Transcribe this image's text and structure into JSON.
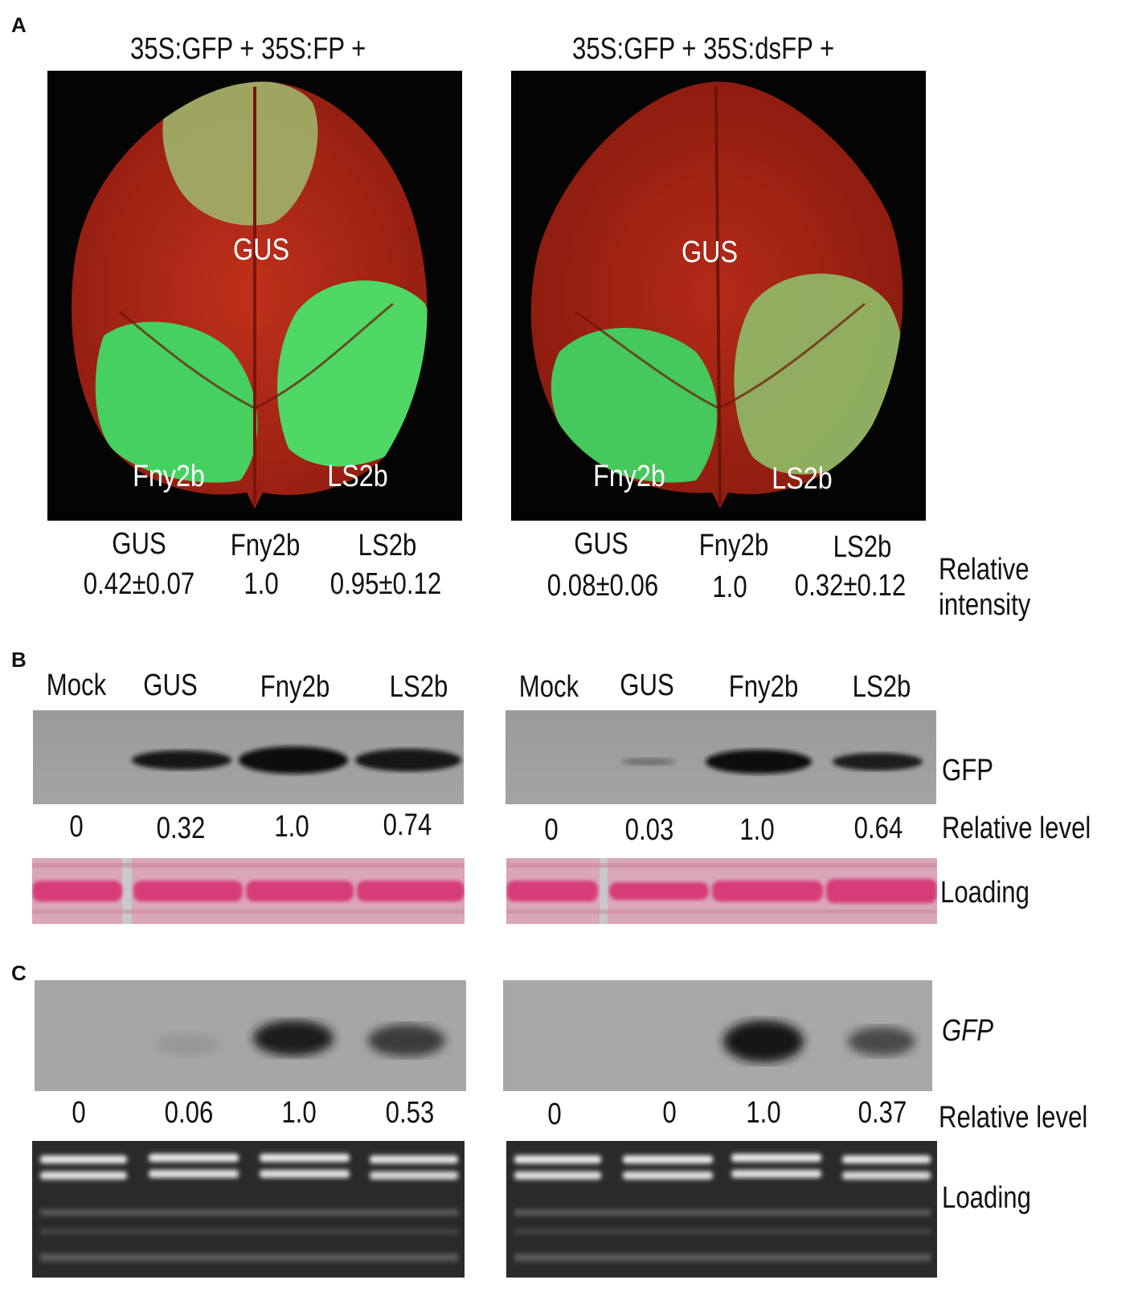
{
  "panel_labels": {
    "a": "A",
    "b": "B",
    "c": "C"
  },
  "panel_a": {
    "left_title": "35S:GFP + 35S:FP +",
    "right_title": "35S:GFP + 35S:dsFP +",
    "leaf_labels": {
      "gus": "GUS",
      "fny": "Fny2b",
      "ls": "LS2b"
    },
    "left_values": {
      "gus": "0.42±0.07",
      "fny": "1.0",
      "ls": "0.95±0.12"
    },
    "right_values": {
      "gus": "0.08±0.06",
      "fny": "1.0",
      "ls": "0.32±0.12"
    },
    "relative_label_1": "Relative",
    "relative_label_2": "intensity",
    "colors": {
      "leaf": "#b02614",
      "gfp_patch": "#3fd35e",
      "background": "#040404"
    }
  },
  "panel_b": {
    "lanes": [
      "Mock",
      "GUS",
      "Fny2b",
      "LS2b"
    ],
    "left_levels": [
      "0",
      "0.32",
      "1.0",
      "0.74"
    ],
    "right_levels": [
      "0",
      "0.03",
      "1.0",
      "0.64"
    ],
    "band_label": "GFP",
    "level_label": "Relative level",
    "loading_label": "Loading"
  },
  "panel_c": {
    "left_levels": [
      "0",
      "0.06",
      "1.0",
      "0.53"
    ],
    "right_levels": [
      "0",
      "0",
      "1.0",
      "0.37"
    ],
    "band_label": "GFP",
    "level_label": "Relative level",
    "loading_label": "Loading"
  }
}
